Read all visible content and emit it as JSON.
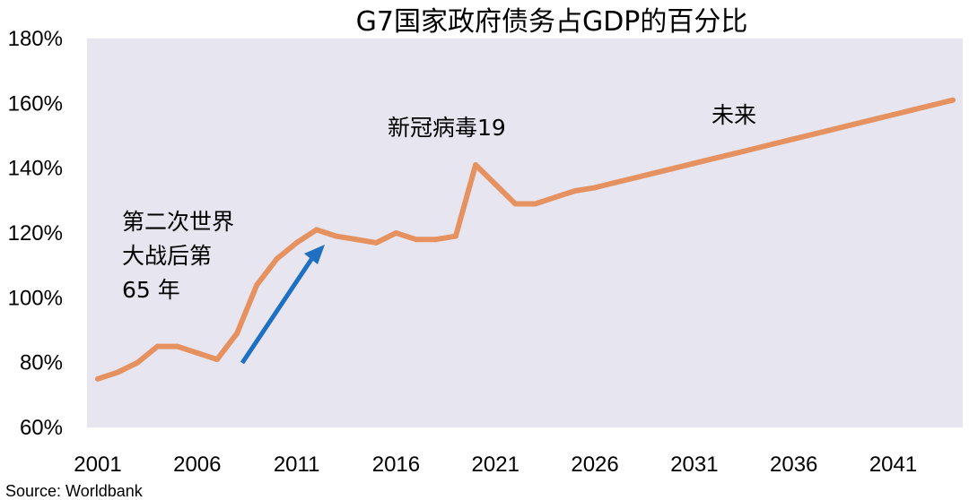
{
  "chart_data": {
    "type": "line",
    "title": "G7国家政府债务占GDP的百分比",
    "xlabel": "",
    "ylabel": "",
    "ylim": [
      60,
      180
    ],
    "yticks": [
      "60%",
      "80%",
      "100%",
      "120%",
      "140%",
      "160%",
      "180%"
    ],
    "xlim": [
      2001,
      2044
    ],
    "xticks": [
      "2001",
      "2006",
      "2011",
      "2016",
      "2021",
      "2026",
      "2031",
      "2036",
      "2041"
    ],
    "series": [
      {
        "name": "G7 government debt % of GDP",
        "color": "#E59160",
        "x": [
          2001,
          2002,
          2003,
          2004,
          2005,
          2006,
          2007,
          2008,
          2009,
          2010,
          2011,
          2012,
          2013,
          2014,
          2015,
          2016,
          2017,
          2018,
          2019,
          2020,
          2021,
          2022,
          2023,
          2024,
          2025,
          2026,
          2027,
          2028,
          2029,
          2030,
          2031,
          2032,
          2033,
          2034,
          2035,
          2036,
          2037,
          2038,
          2039,
          2040,
          2041,
          2042,
          2043,
          2044
        ],
        "values": [
          75,
          77,
          80,
          85,
          85,
          83,
          81,
          89,
          104,
          112,
          117,
          121,
          119,
          118,
          117,
          120,
          118,
          118,
          119,
          141,
          135,
          129,
          129,
          131,
          133,
          134,
          135.5,
          137,
          138.5,
          140,
          141.5,
          143,
          144.5,
          146,
          147.5,
          149,
          150.5,
          152,
          153.5,
          155,
          156.5,
          158,
          159.5,
          161
        ]
      }
    ],
    "annotations": [
      {
        "lines": [
          "第二次世界",
          "大战后第",
          "65 年"
        ]
      },
      {
        "lines": [
          "新冠病毒19"
        ]
      },
      {
        "lines": [
          "未来"
        ]
      }
    ],
    "arrow_color": "#1F70C1",
    "plot_bg": "#E7E6F0",
    "grid": false,
    "legend": "none",
    "source": "Source: Worldbank"
  }
}
